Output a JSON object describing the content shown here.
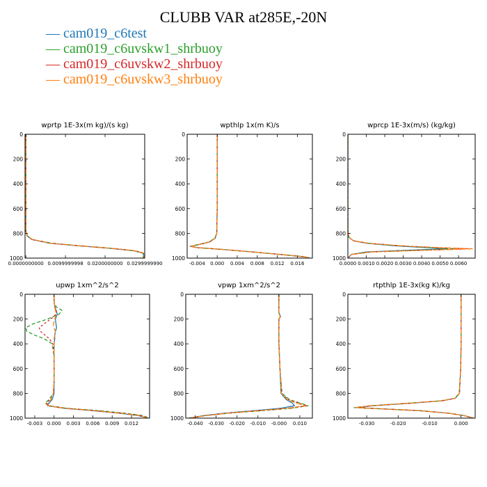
{
  "figure": {
    "title": "CLUBB VAR at285E,-20N"
  },
  "legend": [
    {
      "label": "cam019_c6test",
      "color": "#1f77b4"
    },
    {
      "label": "cam019_c6uvskw1_shrbuoy",
      "color": "#2ca02c"
    },
    {
      "label": "cam019_c6uvskw2_shrbuoy",
      "color": "#d62728"
    },
    {
      "label": "cam019_c6uvskw3_shrbuoy",
      "color": "#ff7f0e"
    }
  ],
  "chart_data": [
    {
      "type": "line",
      "title": "wprtp  1E-3x(m kg)/(s kg)",
      "xlim": [
        -0.0002,
        0.03
      ],
      "ylim": [
        1000,
        0
      ],
      "xticks": [
        0.0,
        0.01,
        0.02,
        0.03
      ],
      "xtick_labels": [
        "0.0000000000",
        "0.0099999998",
        "0.0200000000",
        "0.0299999990"
      ],
      "yticks": [
        0,
        200,
        400,
        600,
        800,
        1000
      ],
      "y": [
        0,
        200,
        400,
        600,
        780,
        820,
        850,
        880,
        900,
        920,
        940,
        960,
        980,
        1000
      ],
      "series": [
        {
          "name": "cam019_c6test",
          "x": [
            0,
            0,
            0,
            0,
            0,
            0.0003,
            0.0015,
            0.006,
            0.013,
            0.021,
            0.027,
            0.0297,
            0.0297,
            0.0297
          ]
        },
        {
          "name": "cam019_c6uvskw1_shrbuoy",
          "x": [
            0,
            0,
            0,
            0,
            0,
            0.0004,
            0.0017,
            0.0065,
            0.0135,
            0.0215,
            0.0272,
            0.0295,
            0.0296,
            0.0296
          ]
        },
        {
          "name": "cam019_c6uvskw2_shrbuoy",
          "x": [
            0,
            0,
            0,
            0,
            0,
            0.0004,
            0.0016,
            0.0063,
            0.0133,
            0.0213,
            0.0275,
            0.03,
            0.03,
            0.03
          ]
        },
        {
          "name": "cam019_c6uvskw3_shrbuoy",
          "x": [
            0,
            0,
            0,
            0,
            0,
            0.0004,
            0.0016,
            0.0062,
            0.0132,
            0.0212,
            0.0273,
            0.0298,
            0.0298,
            0.0298
          ]
        }
      ]
    },
    {
      "type": "line",
      "title": "wpthlp  1x(m K)/s",
      "xlim": [
        -0.006,
        0.019
      ],
      "ylim": [
        1000,
        0
      ],
      "xticks": [
        -0.004,
        0.0,
        0.004,
        0.008,
        0.012,
        0.016
      ],
      "xtick_labels": [
        "-0.004",
        "0.000",
        "0.004",
        "0.008",
        "0.012",
        "0.016"
      ],
      "yticks": [
        0,
        200,
        400,
        600,
        800,
        1000
      ],
      "y": [
        0,
        200,
        400,
        600,
        800,
        840,
        870,
        890,
        905,
        915,
        930,
        950,
        970,
        990,
        1000
      ],
      "series": [
        {
          "name": "cam019_c6test",
          "x": [
            0,
            0,
            0,
            0,
            -0.0001,
            -0.0004,
            -0.0015,
            -0.0035,
            -0.0052,
            -0.004,
            0.001,
            0.007,
            0.0125,
            0.0175,
            0.0185
          ]
        },
        {
          "name": "cam019_c6uvskw1_shrbuoy",
          "x": [
            0,
            0,
            0,
            0,
            -0.0001,
            -0.0005,
            -0.0017,
            -0.0038,
            -0.0054,
            -0.0042,
            0.001,
            0.007,
            0.0125,
            0.0175,
            0.0185
          ]
        },
        {
          "name": "cam019_c6uvskw2_shrbuoy",
          "x": [
            0,
            0,
            0,
            0,
            -0.0001,
            -0.0004,
            -0.0016,
            -0.0036,
            -0.0053,
            -0.0041,
            0.001,
            0.007,
            0.0125,
            0.0175,
            0.0185
          ]
        },
        {
          "name": "cam019_c6uvskw3_shrbuoy",
          "x": [
            0,
            0,
            0,
            0,
            -0.0001,
            -0.0004,
            -0.0015,
            -0.0036,
            -0.0053,
            -0.0041,
            0.001,
            0.007,
            0.0125,
            0.0175,
            0.0185
          ]
        }
      ]
    },
    {
      "type": "line",
      "title": "wprcp  1E-3x(m/s) (kg/kg)",
      "xlim": [
        0.0,
        0.0069
      ],
      "ylim": [
        1000,
        0
      ],
      "xticks": [
        0.0,
        0.001,
        0.002,
        0.003,
        0.004,
        0.005,
        0.006
      ],
      "xtick_labels": [
        "0.0000",
        "0.0010",
        "0.0020",
        "0.0030",
        "0.0040",
        "0.0050",
        "0.0060"
      ],
      "yticks": [
        0,
        200,
        400,
        600,
        800,
        1000
      ],
      "y": [
        0,
        200,
        400,
        600,
        780,
        830,
        860,
        880,
        900,
        915,
        925,
        935,
        950,
        970,
        1000
      ],
      "series": [
        {
          "name": "cam019_c6test",
          "x": [
            0,
            0,
            0,
            0,
            0,
            5e-05,
            0.0003,
            0.001,
            0.0025,
            0.0042,
            0.0054,
            0.0035,
            0.001,
            0.0002,
            0
          ]
        },
        {
          "name": "cam019_c6uvskw1_shrbuoy",
          "x": [
            0,
            0,
            0,
            0,
            0,
            5e-05,
            0.0003,
            0.0011,
            0.0027,
            0.0045,
            0.0058,
            0.004,
            0.0012,
            0.0002,
            0
          ]
        },
        {
          "name": "cam019_c6uvskw2_shrbuoy",
          "x": [
            0,
            0,
            0,
            0,
            0,
            5e-05,
            0.0003,
            0.0011,
            0.0028,
            0.0048,
            0.0066,
            0.0045,
            0.0013,
            0.0002,
            0
          ]
        },
        {
          "name": "cam019_c6uvskw3_shrbuoy",
          "x": [
            0,
            0,
            0,
            0,
            0,
            5e-05,
            0.0003,
            0.0011,
            0.0028,
            0.0049,
            0.0068,
            0.0046,
            0.0013,
            0.0002,
            0
          ]
        }
      ]
    },
    {
      "type": "line",
      "title": "upwp  1xm^2/s^2",
      "xlim": [
        -0.0045,
        0.0148
      ],
      "ylim": [
        1000,
        0
      ],
      "xticks": [
        -0.003,
        0.0,
        0.003,
        0.006,
        0.009,
        0.012
      ],
      "xtick_labels": [
        "-0.003",
        "0.000",
        "0.003",
        "0.006",
        "0.009",
        "0.012"
      ],
      "yticks": [
        0,
        200,
        400,
        600,
        800,
        1000
      ],
      "y": [
        0,
        60,
        100,
        130,
        160,
        200,
        240,
        270,
        300,
        330,
        360,
        400,
        500,
        600,
        700,
        800,
        850,
        880,
        900,
        920,
        940,
        960,
        980,
        995
      ],
      "series": [
        {
          "name": "cam019_c6test",
          "x": [
            0,
            0,
            0.0001,
            0.0003,
            0.0005,
            0.0002,
            0.0003,
            0.0004,
            0.0002,
            0.0001,
            0.0001,
            0,
            0,
            0,
            0,
            0,
            -0.0003,
            -0.0008,
            -0.001,
            0.0015,
            0.006,
            0.01,
            0.013,
            0.0143
          ]
        },
        {
          "name": "cam019_c6uvskw1_shrbuoy",
          "x": [
            0,
            0,
            0.0003,
            0.0012,
            0.0008,
            -0.001,
            -0.0033,
            -0.0044,
            -0.0042,
            -0.003,
            -0.0015,
            -0.0003,
            0,
            0,
            0,
            -0.0001,
            -0.0008,
            -0.0014,
            -0.0008,
            0.002,
            0.007,
            0.011,
            0.0138,
            0.0145
          ]
        },
        {
          "name": "cam019_c6uvskw2_shrbuoy",
          "x": [
            0,
            0,
            0.0001,
            0.0004,
            0.0003,
            -0.0005,
            -0.0016,
            -0.0023,
            -0.0021,
            -0.0014,
            -0.0007,
            -0.0002,
            0,
            0,
            0,
            -0.0001,
            -0.0006,
            -0.0012,
            -0.0009,
            0.0018,
            0.0065,
            0.0105,
            0.0135,
            0.0144
          ]
        },
        {
          "name": "cam019_c6uvskw3_shrbuoy",
          "x": [
            0,
            0,
            0.0001,
            0.0002,
            0.0004,
            0.0001,
            -0.0001,
            0,
            0.0002,
            0.0001,
            0,
            0,
            0,
            0,
            0,
            -0.0001,
            -0.0005,
            -0.001,
            -0.0009,
            0.0016,
            0.0062,
            0.0102,
            0.0132,
            0.0142
          ]
        }
      ]
    },
    {
      "type": "line",
      "title": "vpwp  1xm^2/s^2",
      "xlim": [
        -0.0445,
        0.016
      ],
      "ylim": [
        1000,
        0
      ],
      "xticks": [
        -0.04,
        -0.03,
        -0.02,
        -0.01,
        0.0,
        0.01
      ],
      "xtick_labels": [
        "-0.040",
        "-0.030",
        "-0.020",
        "-0.010",
        "-0.000",
        "0.010"
      ],
      "yticks": [
        0,
        200,
        400,
        600,
        800,
        1000
      ],
      "y": [
        0,
        150,
        180,
        200,
        400,
        600,
        800,
        850,
        880,
        900,
        920,
        940,
        960,
        980,
        1000
      ],
      "series": [
        {
          "name": "cam019_c6test",
          "x": [
            0,
            0,
            0.0008,
            0,
            0,
            0.0005,
            0.001,
            0.0035,
            0.0065,
            0.0075,
            0.001,
            -0.012,
            -0.026,
            -0.036,
            -0.043
          ]
        },
        {
          "name": "cam019_c6uvskw1_shrbuoy",
          "x": [
            0,
            0,
            0.0006,
            0,
            0,
            0.0005,
            0.0015,
            0.005,
            0.0105,
            0.014,
            0.006,
            -0.008,
            -0.024,
            -0.035,
            -0.043
          ]
        },
        {
          "name": "cam019_c6uvskw2_shrbuoy",
          "x": [
            0,
            0,
            0.0007,
            0,
            0,
            0.0005,
            0.0013,
            0.0045,
            0.0095,
            0.0135,
            0.005,
            -0.009,
            -0.025,
            -0.035,
            -0.043
          ]
        },
        {
          "name": "cam019_c6uvskw3_shrbuoy",
          "x": [
            0,
            0,
            0.0006,
            0,
            0,
            0.0005,
            0.0012,
            0.004,
            0.0085,
            0.0125,
            0.004,
            -0.01,
            -0.025,
            -0.035,
            -0.043
          ]
        }
      ]
    },
    {
      "type": "line",
      "title": "rtpthlp  1E-3x(kg K)/kg",
      "xlim": [
        -0.036,
        0.0045
      ],
      "ylim": [
        1000,
        0
      ],
      "xticks": [
        -0.03,
        -0.02,
        -0.01,
        0.0
      ],
      "xtick_labels": [
        "-0.030",
        "-0.020",
        "-0.010",
        "0.000"
      ],
      "yticks": [
        0,
        200,
        400,
        600,
        800,
        1000
      ],
      "y": [
        0,
        200,
        400,
        600,
        800,
        840,
        860,
        880,
        900,
        915,
        925,
        940,
        960,
        980,
        1000
      ],
      "series": [
        {
          "name": "cam019_c6test",
          "x": [
            0,
            0,
            0,
            -0.0001,
            -0.0005,
            -0.0018,
            -0.006,
            -0.016,
            -0.028,
            -0.033,
            -0.025,
            -0.013,
            -0.004,
            0.001,
            0.004
          ]
        },
        {
          "name": "cam019_c6uvskw1_shrbuoy",
          "x": [
            0,
            0,
            0,
            -0.0001,
            -0.0006,
            -0.002,
            -0.0065,
            -0.017,
            -0.029,
            -0.034,
            -0.026,
            -0.013,
            -0.004,
            0.001,
            0.004
          ]
        },
        {
          "name": "cam019_c6uvskw2_shrbuoy",
          "x": [
            0,
            0,
            0,
            -0.0001,
            -0.0005,
            -0.0019,
            -0.0062,
            -0.0165,
            -0.0285,
            -0.0335,
            -0.0255,
            -0.013,
            -0.004,
            0.001,
            0.004
          ]
        },
        {
          "name": "cam019_c6uvskw3_shrbuoy",
          "x": [
            0,
            0,
            0,
            -0.0001,
            -0.0005,
            -0.0019,
            -0.0062,
            -0.0165,
            -0.0285,
            -0.0335,
            -0.0255,
            -0.013,
            -0.004,
            0.001,
            0.004
          ]
        }
      ]
    }
  ]
}
